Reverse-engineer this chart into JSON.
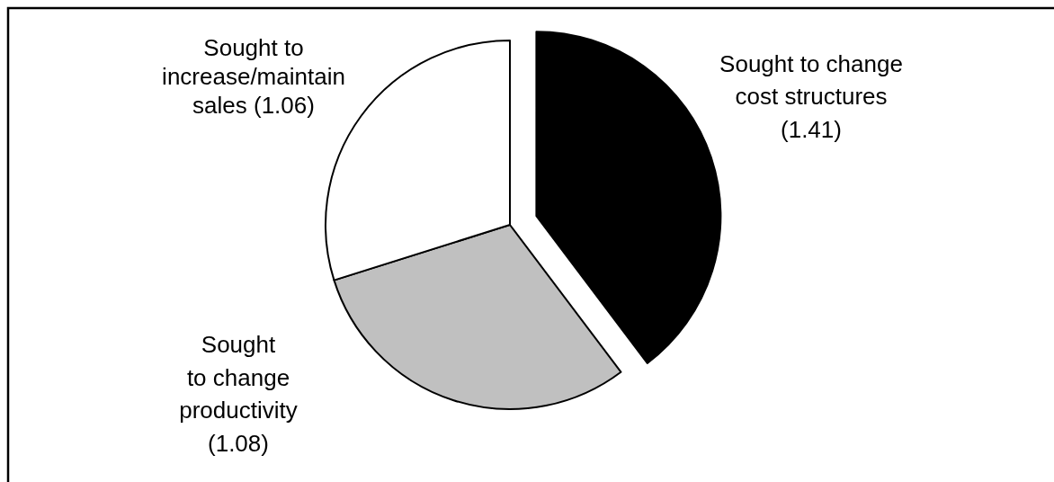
{
  "chart_data": {
    "type": "pie",
    "categories": [
      "Sought to change\ncost structures",
      "Sought\nto change\nproductivity",
      "Sought to\nincrease/maintain\nsales"
    ],
    "values": [
      1.41,
      1.08,
      1.06
    ],
    "value_labels": [
      "(1.41)",
      "(1.08)",
      "(1.06)"
    ],
    "colors": [
      "#000000",
      "#c0c0c0",
      "#ffffff"
    ]
  }
}
